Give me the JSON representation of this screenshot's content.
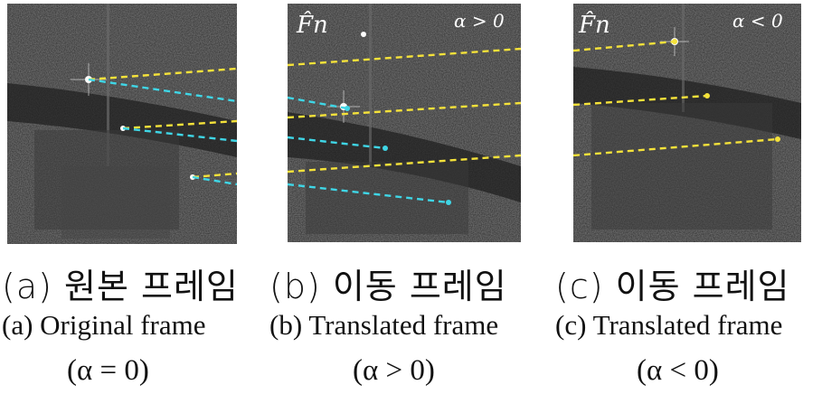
{
  "colors": {
    "yellow_line": "#f5e23a",
    "cyan_line": "#3fd6e6",
    "background_image": "#2a2a2a",
    "text": "#111111"
  },
  "panels": [
    {
      "id": "a",
      "overlay_label": "",
      "condition_label": "",
      "caption_ko": "(a) 원본 프레임",
      "caption_en": "(a) Original frame",
      "caption_cond": "(α = 0)"
    },
    {
      "id": "b",
      "overlay_label": "F̂n",
      "condition_label": "α > 0",
      "caption_ko": "(b) 이동 프레임",
      "caption_en": "(b) Translated frame",
      "caption_cond": "(α > 0)"
    },
    {
      "id": "c",
      "overlay_label": "F̂n",
      "condition_label": "α < 0",
      "caption_ko": "(c) 이동 프레임",
      "caption_en": "(c) Translated frame",
      "caption_cond": "(α < 0)"
    }
  ]
}
